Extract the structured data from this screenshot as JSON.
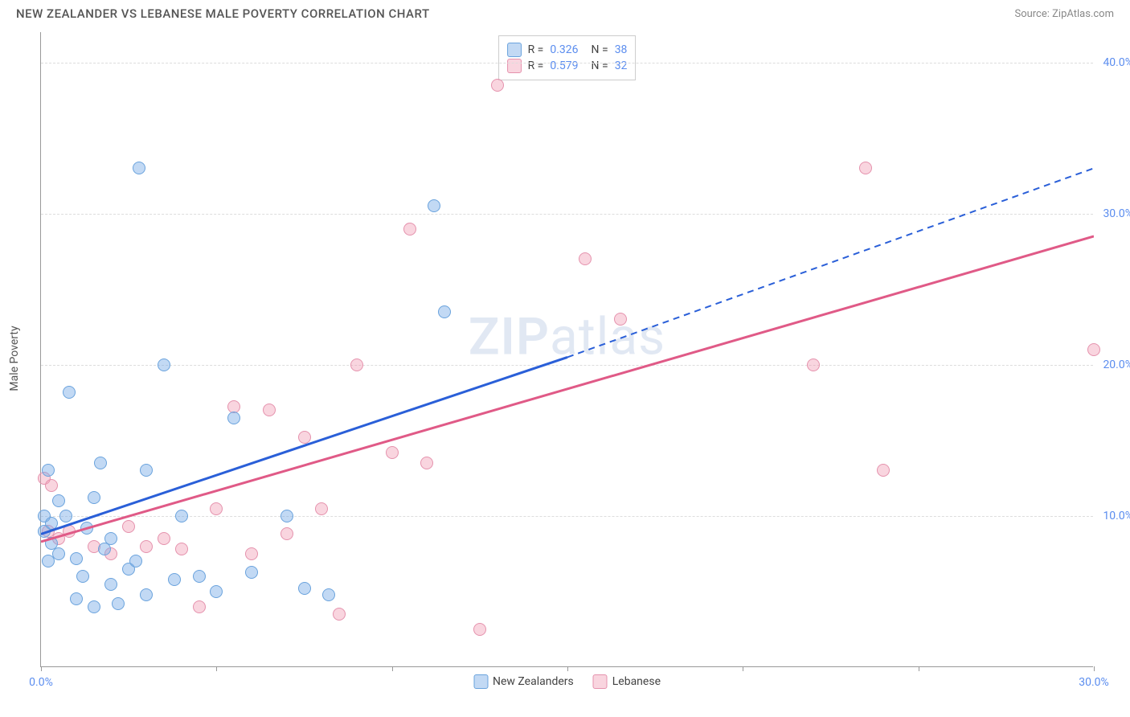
{
  "header": {
    "title": "NEW ZEALANDER VS LEBANESE MALE POVERTY CORRELATION CHART",
    "source": "Source: ZipAtlas.com"
  },
  "chart": {
    "type": "scatter",
    "ylabel": "Male Poverty",
    "watermark_bold": "ZIP",
    "watermark_rest": "atlas",
    "xlim": [
      0,
      30
    ],
    "ylim": [
      0,
      42
    ],
    "xticks": [
      {
        "v": 0,
        "label": "0.0%"
      },
      {
        "v": 30,
        "label": "30.0%"
      }
    ],
    "xtick_marks": [
      0,
      5,
      10,
      15,
      20,
      25,
      30
    ],
    "yticks": [
      {
        "v": 10,
        "label": "10.0%"
      },
      {
        "v": 20,
        "label": "20.0%"
      },
      {
        "v": 30,
        "label": "30.0%"
      },
      {
        "v": 40,
        "label": "40.0%"
      }
    ],
    "colors": {
      "nz_fill": "rgba(120,170,230,0.45)",
      "nz_stroke": "#6aa3dd",
      "leb_fill": "rgba(240,150,175,0.4)",
      "leb_stroke": "#e592ad",
      "nz_line": "#2a5fd8",
      "leb_line": "#e05a87",
      "axis_text": "#5b8def",
      "grid": "#dddddd"
    },
    "point_radius": 8,
    "series": {
      "nz": {
        "label": "New Zealanders",
        "r": "0.326",
        "n": "38",
        "trend": {
          "x1": 0,
          "y1": 8.8,
          "x2": 15,
          "y2": 20.5,
          "dashed_after": 15,
          "x3": 30,
          "y3": 33
        },
        "points": [
          [
            0.1,
            9.0
          ],
          [
            0.1,
            10.0
          ],
          [
            0.2,
            13.0
          ],
          [
            0.2,
            7.0
          ],
          [
            0.3,
            9.5
          ],
          [
            0.3,
            8.2
          ],
          [
            0.5,
            11.0
          ],
          [
            0.5,
            7.5
          ],
          [
            0.7,
            10.0
          ],
          [
            0.8,
            18.2
          ],
          [
            1.0,
            4.5
          ],
          [
            1.0,
            7.2
          ],
          [
            1.2,
            6.0
          ],
          [
            1.3,
            9.2
          ],
          [
            1.5,
            11.2
          ],
          [
            1.5,
            4.0
          ],
          [
            1.7,
            13.5
          ],
          [
            1.8,
            7.8
          ],
          [
            2.0,
            5.5
          ],
          [
            2.0,
            8.5
          ],
          [
            2.2,
            4.2
          ],
          [
            2.5,
            6.5
          ],
          [
            2.7,
            7.0
          ],
          [
            2.8,
            33.0
          ],
          [
            3.0,
            13.0
          ],
          [
            3.0,
            4.8
          ],
          [
            3.5,
            20.0
          ],
          [
            3.8,
            5.8
          ],
          [
            4.0,
            10.0
          ],
          [
            4.5,
            6.0
          ],
          [
            5.0,
            5.0
          ],
          [
            5.5,
            16.5
          ],
          [
            6.0,
            6.3
          ],
          [
            7.0,
            10.0
          ],
          [
            7.5,
            5.2
          ],
          [
            8.2,
            4.8
          ],
          [
            11.2,
            30.5
          ],
          [
            11.5,
            23.5
          ]
        ]
      },
      "leb": {
        "label": "Lebanese",
        "r": "0.579",
        "n": "32",
        "trend": {
          "x1": 0,
          "y1": 8.3,
          "x2": 30,
          "y2": 28.5
        },
        "points": [
          [
            0.1,
            12.5
          ],
          [
            0.2,
            9.0
          ],
          [
            0.3,
            12.0
          ],
          [
            0.5,
            8.5
          ],
          [
            0.8,
            9.0
          ],
          [
            1.5,
            8.0
          ],
          [
            2.0,
            7.5
          ],
          [
            2.5,
            9.3
          ],
          [
            3.0,
            8.0
          ],
          [
            3.5,
            8.5
          ],
          [
            4.0,
            7.8
          ],
          [
            4.5,
            4.0
          ],
          [
            5.0,
            10.5
          ],
          [
            5.5,
            17.2
          ],
          [
            6.0,
            7.5
          ],
          [
            6.5,
            17.0
          ],
          [
            7.0,
            8.8
          ],
          [
            7.5,
            15.2
          ],
          [
            8.0,
            10.5
          ],
          [
            8.5,
            3.5
          ],
          [
            9.0,
            20.0
          ],
          [
            10.0,
            14.2
          ],
          [
            10.5,
            29.0
          ],
          [
            11.0,
            13.5
          ],
          [
            12.5,
            2.5
          ],
          [
            13.0,
            38.5
          ],
          [
            15.5,
            27.0
          ],
          [
            16.5,
            23.0
          ],
          [
            22.0,
            20.0
          ],
          [
            23.5,
            33.0
          ],
          [
            24.0,
            13.0
          ],
          [
            30.0,
            21.0
          ]
        ]
      }
    }
  }
}
